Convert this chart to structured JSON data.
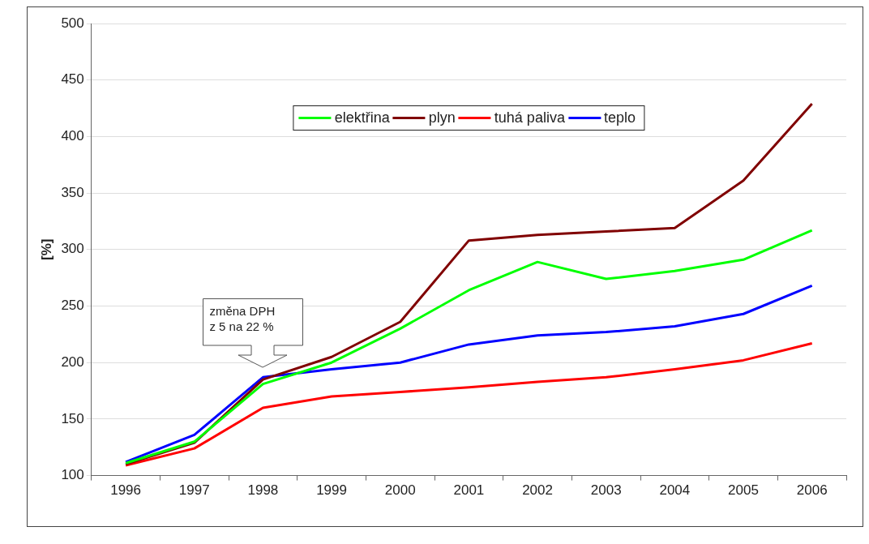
{
  "chart_data": {
    "type": "line",
    "ylabel": "[%]",
    "categories": [
      "1996",
      "1997",
      "1998",
      "1999",
      "2000",
      "2001",
      "2002",
      "2003",
      "2004",
      "2005",
      "2006"
    ],
    "series": [
      {
        "name": "elektřina",
        "color": "#00ff00",
        "values": [
          111,
          130,
          181,
          200,
          230,
          264,
          289,
          274,
          281,
          291,
          317
        ]
      },
      {
        "name": "plyn",
        "color": "#800000",
        "values": [
          110,
          129,
          185,
          205,
          236,
          308,
          313,
          316,
          319,
          361,
          429
        ]
      },
      {
        "name": "tuhá paliva",
        "color": "#ff0000",
        "values": [
          109,
          124,
          160,
          170,
          174,
          178,
          183,
          187,
          194,
          202,
          217
        ]
      },
      {
        "name": "teplo",
        "color": "#0000ff",
        "values": [
          112,
          136,
          187,
          194,
          200,
          216,
          224,
          227,
          232,
          243,
          268
        ]
      }
    ],
    "ylim": [
      100,
      500
    ],
    "yticks": [
      100,
      150,
      200,
      250,
      300,
      350,
      400,
      450,
      500
    ],
    "grid": "y",
    "legend": "top",
    "marker": "none",
    "line_style": "solid",
    "annotations": [
      "změna DPH\nz 5 na 22 %"
    ]
  }
}
